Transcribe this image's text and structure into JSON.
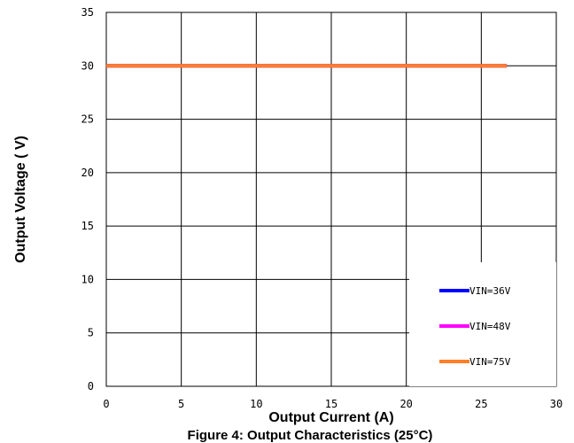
{
  "chart_data": {
    "type": "line",
    "title": "",
    "xlabel": "Output Current (A)",
    "ylabel": "Output Voltage ( V)",
    "xlim": [
      0,
      30
    ],
    "ylim": [
      0,
      35
    ],
    "xticks": [
      0,
      5,
      10,
      15,
      20,
      25,
      30
    ],
    "yticks": [
      0,
      5,
      10,
      15,
      20,
      25,
      30,
      35
    ],
    "grid": true,
    "legend_position": "bottom-right",
    "series": [
      {
        "name": "VIN=36V",
        "color": "#0000ff",
        "x": [
          0,
          26.7
        ],
        "y": [
          30,
          30
        ]
      },
      {
        "name": "VIN=48V",
        "color": "#ff00ff",
        "x": [
          0,
          26.7
        ],
        "y": [
          30,
          30
        ]
      },
      {
        "name": "VIN=75V",
        "color": "#ff7f27",
        "x": [
          0,
          26.7
        ],
        "y": [
          30,
          30
        ]
      }
    ],
    "caption": "Figure 4: Output Characteristics (25°C)"
  }
}
